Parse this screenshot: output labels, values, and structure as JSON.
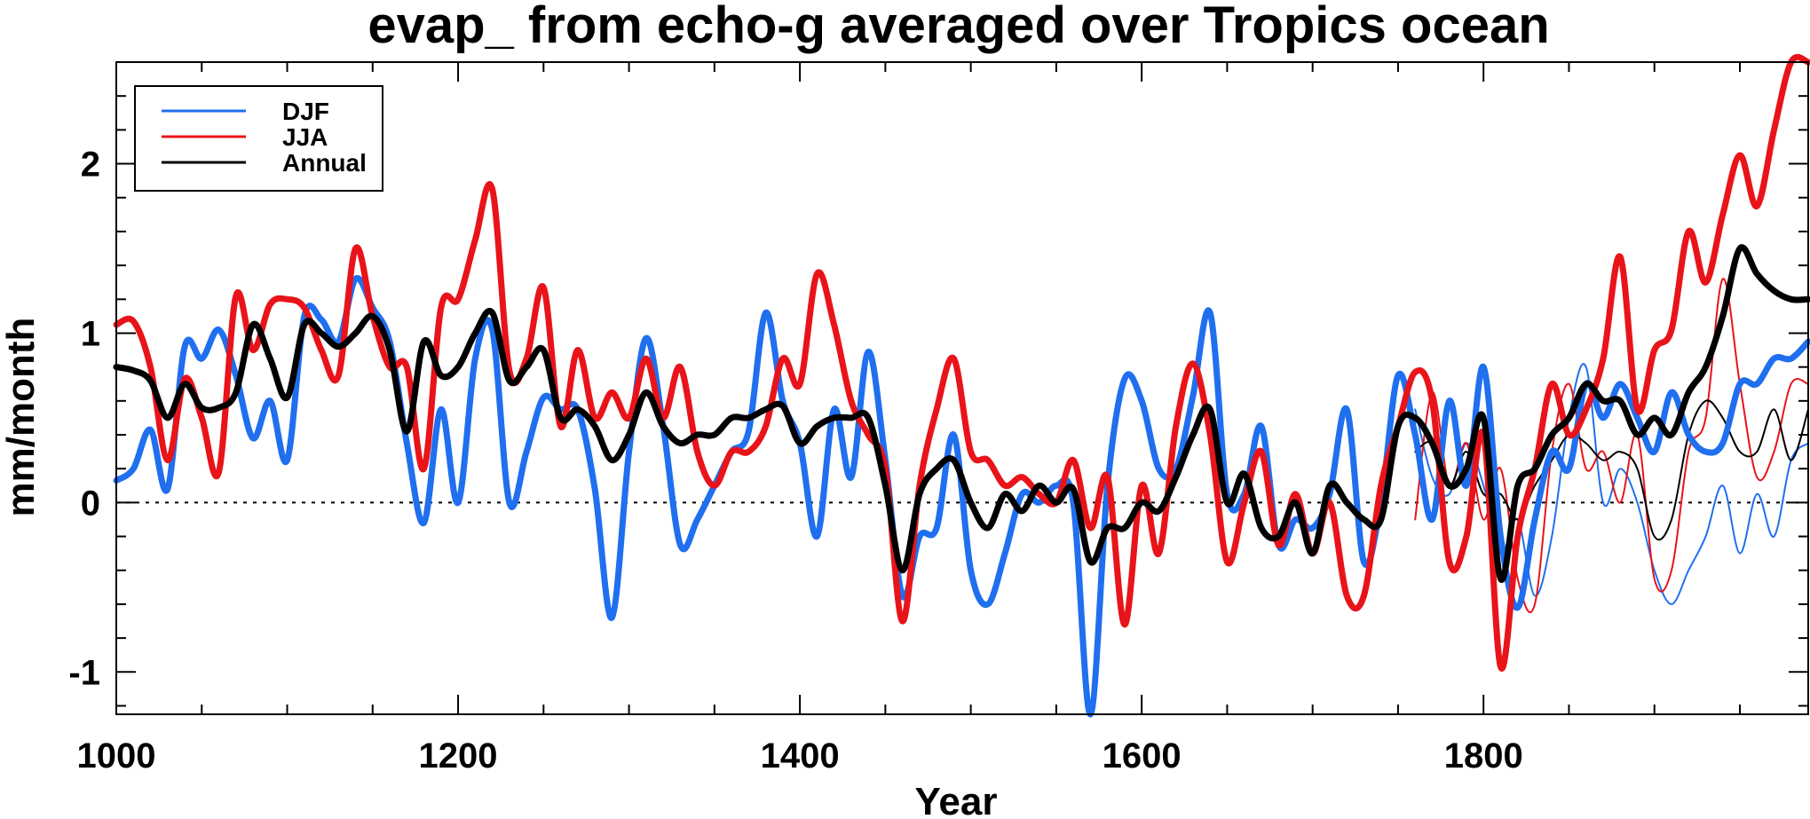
{
  "chart_data": {
    "type": "line",
    "title": "evap_ from echo-g averaged over Tropics ocean",
    "xlabel": "Year",
    "ylabel": "mm/month",
    "xlim": [
      1000,
      1990
    ],
    "ylim": [
      -1.25,
      2.6
    ],
    "xticks": [
      1000,
      1200,
      1400,
      1600,
      1800
    ],
    "xtick_labels": [
      "1000",
      "1200",
      "1400",
      "1600",
      "1800"
    ],
    "yticks": [
      -1,
      0,
      1,
      2
    ],
    "ytick_labels": [
      "-1",
      "0",
      "1",
      "2"
    ],
    "zero_line": true,
    "legend_position": "top-left",
    "legend": [
      "DJF",
      "JJA",
      "Annual"
    ],
    "colors": {
      "DJF": "#1f6fef",
      "JJA": "#e8141a",
      "Annual": "#000000"
    },
    "series": [
      {
        "name": "DJF",
        "color": "#1f6fef",
        "style": "thick",
        "x": [
          1000,
          1010,
          1020,
          1030,
          1040,
          1050,
          1060,
          1070,
          1080,
          1090,
          1100,
          1110,
          1120,
          1130,
          1140,
          1150,
          1160,
          1170,
          1180,
          1190,
          1200,
          1210,
          1220,
          1230,
          1240,
          1250,
          1260,
          1270,
          1280,
          1290,
          1300,
          1310,
          1320,
          1330,
          1340,
          1350,
          1360,
          1370,
          1380,
          1390,
          1400,
          1410,
          1420,
          1430,
          1440,
          1450,
          1460,
          1470,
          1480,
          1490,
          1500,
          1510,
          1520,
          1530,
          1540,
          1550,
          1560,
          1570,
          1580,
          1590,
          1600,
          1610,
          1620,
          1630,
          1640,
          1650,
          1660,
          1670,
          1680,
          1690,
          1700,
          1710,
          1720,
          1730,
          1740,
          1750,
          1760,
          1770,
          1780,
          1790,
          1800,
          1810,
          1820,
          1830,
          1840,
          1850,
          1860,
          1870,
          1880,
          1890,
          1900,
          1910,
          1920,
          1930,
          1940,
          1950,
          1960,
          1970,
          1980,
          1990
        ],
        "values": [
          0.13,
          0.2,
          0.43,
          0.08,
          0.92,
          0.85,
          1.02,
          0.75,
          0.38,
          0.6,
          0.25,
          1.1,
          1.08,
          0.95,
          1.32,
          1.15,
          0.95,
          0.35,
          -0.12,
          0.55,
          0.0,
          0.85,
          1.02,
          0.0,
          0.3,
          0.62,
          0.55,
          0.55,
          0.08,
          -0.68,
          0.3,
          0.97,
          0.45,
          -0.25,
          -0.1,
          0.1,
          0.3,
          0.42,
          1.12,
          0.6,
          0.35,
          -0.2,
          0.55,
          0.15,
          0.89,
          0.25,
          -0.55,
          -0.2,
          -0.15,
          0.4,
          -0.4,
          -0.6,
          -0.3,
          0.05,
          0.0,
          0.1,
          0.0,
          -1.25,
          0.1,
          0.73,
          0.6,
          0.2,
          0.2,
          0.63,
          1.12,
          0.05,
          0.05,
          0.45,
          -0.25,
          -0.1,
          -0.15,
          0.05,
          0.55,
          -0.35,
          0.0,
          0.75,
          0.4,
          -0.1,
          0.6,
          0.1,
          0.8,
          -0.2,
          -0.62,
          -0.1,
          0.3,
          0.2,
          0.7,
          0.5,
          0.7,
          0.5,
          0.3,
          0.65,
          0.4,
          0.3,
          0.35,
          0.7,
          0.7,
          0.85,
          0.85,
          0.95
        ]
      },
      {
        "name": "JJA",
        "color": "#e8141a",
        "style": "thick",
        "x": [
          1000,
          1010,
          1020,
          1030,
          1040,
          1050,
          1060,
          1070,
          1080,
          1090,
          1100,
          1110,
          1120,
          1130,
          1140,
          1150,
          1160,
          1170,
          1180,
          1190,
          1200,
          1210,
          1220,
          1230,
          1240,
          1250,
          1260,
          1270,
          1280,
          1290,
          1300,
          1310,
          1320,
          1330,
          1340,
          1350,
          1360,
          1370,
          1380,
          1390,
          1400,
          1410,
          1420,
          1430,
          1440,
          1450,
          1460,
          1470,
          1480,
          1490,
          1500,
          1510,
          1520,
          1530,
          1540,
          1550,
          1560,
          1570,
          1580,
          1590,
          1600,
          1610,
          1620,
          1630,
          1640,
          1650,
          1660,
          1670,
          1680,
          1690,
          1700,
          1710,
          1720,
          1730,
          1740,
          1750,
          1760,
          1770,
          1780,
          1790,
          1800,
          1810,
          1820,
          1830,
          1840,
          1850,
          1860,
          1870,
          1880,
          1890,
          1900,
          1910,
          1920,
          1930,
          1940,
          1950,
          1960,
          1970,
          1980,
          1990
        ],
        "values": [
          1.05,
          1.07,
          0.8,
          0.25,
          0.73,
          0.5,
          0.18,
          1.22,
          0.9,
          1.17,
          1.2,
          1.15,
          0.9,
          0.75,
          1.5,
          1.1,
          0.8,
          0.8,
          0.2,
          1.15,
          1.2,
          1.55,
          1.85,
          0.78,
          0.85,
          1.27,
          0.45,
          0.9,
          0.5,
          0.65,
          0.5,
          0.85,
          0.5,
          0.8,
          0.3,
          0.1,
          0.3,
          0.3,
          0.45,
          0.85,
          0.7,
          1.35,
          1.05,
          0.6,
          0.4,
          0.2,
          -0.7,
          0.1,
          0.55,
          0.85,
          0.3,
          0.25,
          0.1,
          0.15,
          0.05,
          0.0,
          0.25,
          -0.15,
          0.15,
          -0.72,
          0.1,
          -0.3,
          0.45,
          0.82,
          0.4,
          -0.35,
          0.0,
          0.3,
          -0.25,
          0.05,
          -0.3,
          0.0,
          -0.55,
          -0.55,
          0.1,
          0.45,
          0.77,
          0.6,
          -0.35,
          -0.2,
          0.4,
          -0.97,
          -0.2,
          0.2,
          0.7,
          0.4,
          0.55,
          0.85,
          1.45,
          0.55,
          0.9,
          1.02,
          1.6,
          1.3,
          1.7,
          2.05,
          1.75,
          2.2,
          2.6,
          2.6
        ]
      },
      {
        "name": "Annual",
        "color": "#000000",
        "style": "thick",
        "x": [
          1000,
          1010,
          1020,
          1030,
          1040,
          1050,
          1060,
          1070,
          1080,
          1090,
          1100,
          1110,
          1120,
          1130,
          1140,
          1150,
          1160,
          1170,
          1180,
          1190,
          1200,
          1210,
          1220,
          1230,
          1240,
          1250,
          1260,
          1270,
          1280,
          1290,
          1300,
          1310,
          1320,
          1330,
          1340,
          1350,
          1360,
          1370,
          1380,
          1390,
          1400,
          1410,
          1420,
          1430,
          1440,
          1450,
          1460,
          1470,
          1480,
          1490,
          1500,
          1510,
          1520,
          1530,
          1540,
          1550,
          1560,
          1570,
          1580,
          1590,
          1600,
          1610,
          1620,
          1630,
          1640,
          1650,
          1660,
          1670,
          1680,
          1690,
          1700,
          1710,
          1720,
          1730,
          1740,
          1750,
          1760,
          1770,
          1780,
          1790,
          1800,
          1810,
          1820,
          1830,
          1840,
          1850,
          1860,
          1870,
          1880,
          1890,
          1900,
          1910,
          1920,
          1930,
          1940,
          1950,
          1960,
          1970,
          1980,
          1990
        ],
        "values": [
          0.8,
          0.78,
          0.72,
          0.5,
          0.7,
          0.56,
          0.56,
          0.65,
          1.05,
          0.85,
          0.62,
          1.05,
          1.0,
          0.92,
          1.0,
          1.1,
          0.9,
          0.42,
          0.95,
          0.75,
          0.8,
          1.0,
          1.12,
          0.72,
          0.8,
          0.9,
          0.5,
          0.55,
          0.45,
          0.25,
          0.4,
          0.65,
          0.45,
          0.35,
          0.4,
          0.4,
          0.5,
          0.5,
          0.55,
          0.57,
          0.35,
          0.45,
          0.5,
          0.5,
          0.5,
          0.1,
          -0.4,
          0.05,
          0.2,
          0.25,
          0.0,
          -0.15,
          0.05,
          -0.05,
          0.1,
          0.0,
          0.08,
          -0.35,
          -0.15,
          -0.15,
          0.0,
          -0.05,
          0.15,
          0.4,
          0.55,
          0.0,
          0.17,
          -0.15,
          -0.2,
          0.0,
          -0.3,
          0.1,
          0.0,
          -0.1,
          -0.1,
          0.45,
          0.5,
          0.35,
          0.1,
          0.2,
          0.5,
          -0.45,
          0.1,
          0.2,
          0.4,
          0.5,
          0.7,
          0.6,
          0.6,
          0.4,
          0.5,
          0.4,
          0.65,
          0.8,
          1.1,
          1.5,
          1.35,
          1.25,
          1.2,
          1.2
        ]
      },
      {
        "name": "DJF (thin)",
        "color": "#1f6fef",
        "style": "thin",
        "x": [
          1760,
          1770,
          1780,
          1790,
          1800,
          1810,
          1820,
          1830,
          1840,
          1850,
          1860,
          1870,
          1880,
          1890,
          1900,
          1910,
          1920,
          1930,
          1940,
          1950,
          1960,
          1970,
          1980,
          1990
        ],
        "values": [
          0.55,
          0.15,
          0.05,
          0.35,
          0.1,
          -0.3,
          -0.1,
          -0.55,
          -0.2,
          0.5,
          0.8,
          0.0,
          0.2,
          0.0,
          -0.4,
          -0.6,
          -0.4,
          -0.2,
          0.1,
          -0.3,
          0.05,
          -0.2,
          0.25,
          0.35
        ]
      },
      {
        "name": "JJA (thin)",
        "color": "#e8141a",
        "style": "thin",
        "x": [
          1760,
          1770,
          1780,
          1790,
          1800,
          1810,
          1820,
          1830,
          1840,
          1850,
          1860,
          1870,
          1880,
          1890,
          1900,
          1910,
          1920,
          1930,
          1940,
          1950,
          1960,
          1970,
          1980,
          1990
        ],
        "values": [
          -0.1,
          0.65,
          0.1,
          0.35,
          -0.1,
          0.2,
          -0.45,
          -0.6,
          0.3,
          0.7,
          0.2,
          0.3,
          0.0,
          0.4,
          -0.45,
          -0.4,
          0.3,
          0.5,
          1.32,
          0.7,
          0.15,
          0.3,
          0.7,
          0.7
        ]
      },
      {
        "name": "Annual (thin)",
        "color": "#000000",
        "style": "thin",
        "x": [
          1760,
          1770,
          1780,
          1790,
          1800,
          1810,
          1820,
          1830,
          1840,
          1850,
          1860,
          1870,
          1880,
          1890,
          1900,
          1910,
          1920,
          1930,
          1940,
          1950,
          1960,
          1970,
          1980,
          1990
        ],
        "values": [
          0.3,
          0.35,
          0.1,
          0.3,
          0.05,
          0.05,
          -0.1,
          0.1,
          0.25,
          0.4,
          0.35,
          0.25,
          0.3,
          0.2,
          -0.2,
          -0.1,
          0.4,
          0.6,
          0.5,
          0.3,
          0.3,
          0.55,
          0.25,
          0.55
        ]
      }
    ]
  }
}
